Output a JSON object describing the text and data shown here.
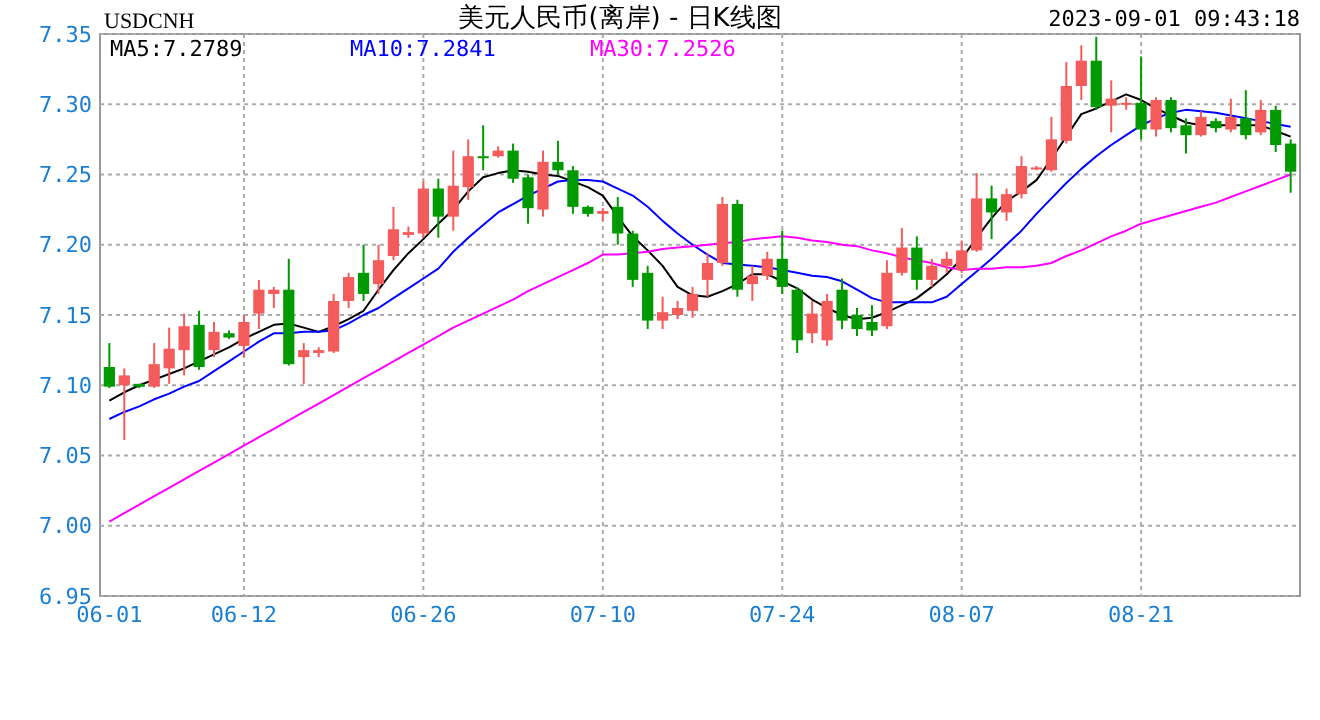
{
  "chart_data": {
    "type": "candlestick",
    "title": "美元人民币(离岸) - 日K线图",
    "subtitle": "USDCNH",
    "annotations": [
      "2023-09-01 09:43:18"
    ],
    "categories": [
      "06-01",
      null,
      null,
      null,
      null,
      null,
      null,
      null,
      null,
      "06-12",
      null,
      null,
      null,
      null,
      null,
      null,
      null,
      null,
      null,
      null,
      null,
      "06-26",
      null,
      null,
      null,
      null,
      null,
      null,
      null,
      null,
      null,
      null,
      null,
      "07-10",
      null,
      null,
      null,
      null,
      null,
      null,
      null,
      null,
      null,
      null,
      null,
      "07-24",
      null,
      null,
      null,
      null,
      null,
      null,
      null,
      null,
      null,
      null,
      null,
      "08-07",
      null,
      null,
      null,
      null,
      null,
      null,
      null,
      null,
      null,
      null,
      null,
      "08-21",
      null,
      null,
      null,
      null,
      null,
      null,
      null,
      null,
      null,
      null
    ],
    "ohlc": [
      [
        7.113,
        7.13,
        7.098,
        7.099
      ],
      [
        7.1,
        7.112,
        7.061,
        7.107
      ],
      [
        7.101,
        7.101,
        7.098,
        7.099
      ],
      [
        7.099,
        7.13,
        7.098,
        7.115
      ],
      [
        7.112,
        7.141,
        7.101,
        7.126
      ],
      [
        7.125,
        7.151,
        7.107,
        7.142
      ],
      [
        7.143,
        7.153,
        7.111,
        7.113
      ],
      [
        7.125,
        7.145,
        7.12,
        7.138
      ],
      [
        7.137,
        7.139,
        7.133,
        7.134
      ],
      [
        7.128,
        7.15,
        7.12,
        7.145
      ],
      [
        7.151,
        7.175,
        7.14,
        7.168
      ],
      [
        7.165,
        7.17,
        7.155,
        7.168
      ],
      [
        7.168,
        7.19,
        7.114,
        7.115
      ],
      [
        7.12,
        7.13,
        7.101,
        7.125
      ],
      [
        7.123,
        7.127,
        7.12,
        7.125
      ],
      [
        7.124,
        7.165,
        7.123,
        7.16
      ],
      [
        7.16,
        7.18,
        7.155,
        7.177
      ],
      [
        7.18,
        7.2,
        7.16,
        7.165
      ],
      [
        7.172,
        7.2,
        7.165,
        7.189
      ],
      [
        7.192,
        7.227,
        7.189,
        7.211
      ],
      [
        7.207,
        7.213,
        7.205,
        7.209
      ],
      [
        7.208,
        7.245,
        7.205,
        7.24
      ],
      [
        7.24,
        7.247,
        7.205,
        7.22
      ],
      [
        7.22,
        7.267,
        7.21,
        7.242
      ],
      [
        7.241,
        7.275,
        7.232,
        7.263
      ],
      [
        7.263,
        7.285,
        7.253,
        7.262
      ],
      [
        7.263,
        7.27,
        7.262,
        7.267
      ],
      [
        7.267,
        7.272,
        7.244,
        7.247
      ],
      [
        7.248,
        7.25,
        7.215,
        7.226
      ],
      [
        7.225,
        7.267,
        7.22,
        7.259
      ],
      [
        7.259,
        7.274,
        7.25,
        7.253
      ],
      [
        7.253,
        7.256,
        7.222,
        7.227
      ],
      [
        7.227,
        7.228,
        7.22,
        7.222
      ],
      [
        7.222,
        7.226,
        7.217,
        7.224
      ],
      [
        7.227,
        7.234,
        7.2,
        7.208
      ],
      [
        7.208,
        7.21,
        7.17,
        7.175
      ],
      [
        7.18,
        7.185,
        7.14,
        7.146
      ],
      [
        7.146,
        7.163,
        7.14,
        7.152
      ],
      [
        7.15,
        7.16,
        7.147,
        7.155
      ],
      [
        7.153,
        7.17,
        7.148,
        7.165
      ],
      [
        7.175,
        7.194,
        7.163,
        7.187
      ],
      [
        7.187,
        7.234,
        7.185,
        7.229
      ],
      [
        7.229,
        7.232,
        7.163,
        7.168
      ],
      [
        7.172,
        7.185,
        7.16,
        7.178
      ],
      [
        7.178,
        7.195,
        7.175,
        7.19
      ],
      [
        7.19,
        7.21,
        7.165,
        7.17
      ],
      [
        7.168,
        7.17,
        7.123,
        7.132
      ],
      [
        7.137,
        7.16,
        7.13,
        7.151
      ],
      [
        7.132,
        7.165,
        7.128,
        7.16
      ],
      [
        7.168,
        7.176,
        7.14,
        7.146
      ],
      [
        7.15,
        7.155,
        7.135,
        7.14
      ],
      [
        7.145,
        7.157,
        7.135,
        7.139
      ],
      [
        7.142,
        7.189,
        7.14,
        7.18
      ],
      [
        7.18,
        7.212,
        7.178,
        7.198
      ],
      [
        7.198,
        7.206,
        7.168,
        7.175
      ],
      [
        7.175,
        7.19,
        7.17,
        7.185
      ],
      [
        7.185,
        7.195,
        7.18,
        7.19
      ],
      [
        7.182,
        7.203,
        7.18,
        7.196
      ],
      [
        7.196,
        7.251,
        7.195,
        7.233
      ],
      [
        7.233,
        7.242,
        7.204,
        7.223
      ],
      [
        7.223,
        7.24,
        7.217,
        7.236
      ],
      [
        7.236,
        7.263,
        7.233,
        7.256
      ],
      [
        7.254,
        7.256,
        7.253,
        7.255
      ],
      [
        7.253,
        7.291,
        7.252,
        7.275
      ],
      [
        7.274,
        7.33,
        7.272,
        7.313
      ],
      [
        7.313,
        7.342,
        7.303,
        7.331
      ],
      [
        7.331,
        7.348,
        7.296,
        7.298
      ],
      [
        7.299,
        7.317,
        7.28,
        7.304
      ],
      [
        7.3,
        7.305,
        7.296,
        7.301
      ],
      [
        7.301,
        7.334,
        7.275,
        7.282
      ],
      [
        7.282,
        7.305,
        7.277,
        7.303
      ],
      [
        7.303,
        7.305,
        7.28,
        7.283
      ],
      [
        7.285,
        7.29,
        7.265,
        7.278
      ],
      [
        7.278,
        7.295,
        7.277,
        7.291
      ],
      [
        7.288,
        7.29,
        7.28,
        7.283
      ],
      [
        7.282,
        7.304,
        7.28,
        7.291
      ],
      [
        7.29,
        7.31,
        7.275,
        7.278
      ],
      [
        7.28,
        7.303,
        7.278,
        7.296
      ],
      [
        7.296,
        7.299,
        7.266,
        7.271
      ],
      [
        7.272,
        7.275,
        7.237,
        7.252
      ]
    ],
    "series": [
      {
        "name": "MA5:7.2789",
        "type": "line",
        "color": "#000000",
        "values": [
          7.089,
          7.095,
          7.1,
          7.104,
          7.108,
          7.112,
          7.117,
          7.122,
          7.127,
          7.133,
          7.138,
          7.143,
          7.144,
          7.141,
          7.138,
          7.142,
          7.147,
          7.153,
          7.168,
          7.182,
          7.194,
          7.204,
          7.215,
          7.225,
          7.238,
          7.248,
          7.251,
          7.253,
          7.252,
          7.25,
          7.249,
          7.245,
          7.241,
          7.235,
          7.22,
          7.206,
          7.196,
          7.185,
          7.17,
          7.164,
          7.163,
          7.167,
          7.172,
          7.179,
          7.179,
          7.174,
          7.169,
          7.161,
          7.155,
          7.15,
          7.147,
          7.148,
          7.152,
          7.157,
          7.162,
          7.17,
          7.179,
          7.19,
          7.205,
          7.219,
          7.231,
          7.238,
          7.246,
          7.261,
          7.277,
          7.293,
          7.297,
          7.302,
          7.307,
          7.303,
          7.297,
          7.292,
          7.287,
          7.285,
          7.285,
          7.285,
          7.285,
          7.285,
          7.281,
          7.277
        ]
      },
      {
        "name": "MA10:7.2841",
        "type": "line",
        "color": "#0000ff",
        "values": [
          7.076,
          7.081,
          7.085,
          7.09,
          7.094,
          7.099,
          7.103,
          7.11,
          7.117,
          7.124,
          7.131,
          7.137,
          7.137,
          7.138,
          7.138,
          7.139,
          7.144,
          7.15,
          7.155,
          7.162,
          7.169,
          7.176,
          7.183,
          7.195,
          7.205,
          7.214,
          7.223,
          7.229,
          7.235,
          7.24,
          7.245,
          7.246,
          7.246,
          7.245,
          7.24,
          7.235,
          7.227,
          7.217,
          7.208,
          7.2,
          7.193,
          7.187,
          7.186,
          7.185,
          7.184,
          7.182,
          7.18,
          7.178,
          7.177,
          7.174,
          7.168,
          7.162,
          7.159,
          7.159,
          7.159,
          7.159,
          7.163,
          7.172,
          7.181,
          7.19,
          7.2,
          7.21,
          7.222,
          7.233,
          7.244,
          7.254,
          7.263,
          7.271,
          7.278,
          7.285,
          7.29,
          7.294,
          7.296,
          7.295,
          7.294,
          7.292,
          7.29,
          7.288,
          7.286,
          7.284
        ]
      },
      {
        "name": "MA30:7.2526",
        "type": "line",
        "color": "#ff00ff",
        "values": [
          7.003,
          7.009,
          7.015,
          7.021,
          7.027,
          7.033,
          7.039,
          7.045,
          7.051,
          7.057,
          7.063,
          7.069,
          7.075,
          7.081,
          7.087,
          7.093,
          7.099,
          7.105,
          7.111,
          7.117,
          7.123,
          7.129,
          7.135,
          7.141,
          7.146,
          7.151,
          7.156,
          7.161,
          7.167,
          7.172,
          7.177,
          7.182,
          7.187,
          7.193,
          7.193,
          7.194,
          7.195,
          7.197,
          7.198,
          7.199,
          7.2,
          7.201,
          7.202,
          7.204,
          7.205,
          7.206,
          7.205,
          7.203,
          7.202,
          7.2,
          7.199,
          7.196,
          7.194,
          7.191,
          7.189,
          7.187,
          7.184,
          7.182,
          7.183,
          7.183,
          7.184,
          7.184,
          7.185,
          7.187,
          7.192,
          7.196,
          7.201,
          7.206,
          7.21,
          7.215,
          7.218,
          7.221,
          7.224,
          7.227,
          7.23,
          7.234,
          7.238,
          7.242,
          7.246,
          7.25
        ]
      }
    ],
    "ylim": [
      6.95,
      7.35
    ],
    "yticks": [
      {
        "value": 6.95,
        "label": "6.95"
      },
      {
        "value": 7.0,
        "label": "7.00"
      },
      {
        "value": 7.05,
        "label": "7.05"
      },
      {
        "value": 7.1,
        "label": "7.10"
      },
      {
        "value": 7.15,
        "label": "7.15"
      },
      {
        "value": 7.2,
        "label": "7.20"
      },
      {
        "value": 7.25,
        "label": "7.25"
      },
      {
        "value": 7.3,
        "label": "7.30"
      },
      {
        "value": 7.35,
        "label": "7.35"
      }
    ],
    "grid": true,
    "legend": "top left"
  }
}
